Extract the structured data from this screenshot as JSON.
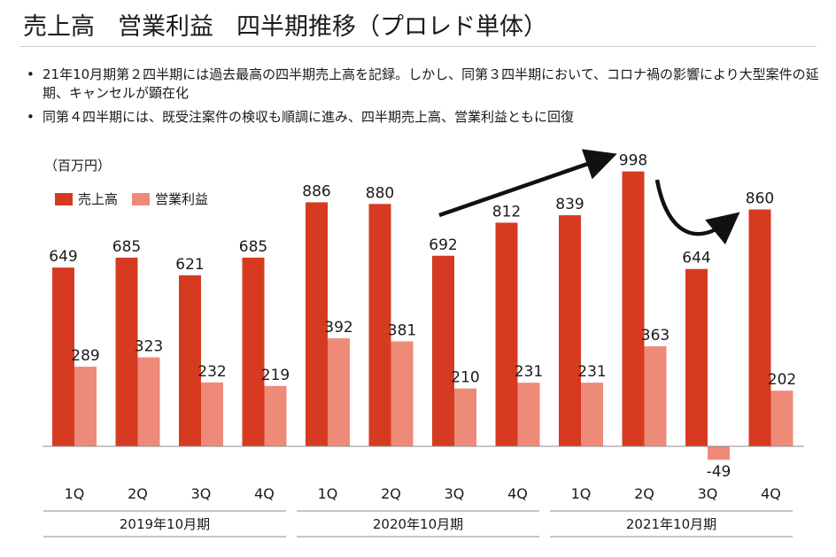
{
  "title": {
    "part1": "売上高",
    "part2": "営業利益",
    "part3": "四半期推移（プロレド単体）"
  },
  "bullets": [
    "21年10月期第２四半期には過去最高の四半期売上高を記録。しかし、同第３四半期において、コロナ禍の影響により大型案件の延期、キャンセルが顕在化",
    "同第４四半期には、既受注案件の検収も順調に進み、四半期売上高、営業利益ともに回復"
  ],
  "colors": {
    "sales": "#d63b21",
    "profit": "#ee8a78",
    "axis": "#8c8c8c"
  },
  "chart_data": {
    "type": "bar",
    "unit_label": "（百万円）",
    "categories": [
      "1Q",
      "2Q",
      "3Q",
      "4Q",
      "1Q",
      "2Q",
      "3Q",
      "4Q",
      "1Q",
      "2Q",
      "3Q",
      "4Q"
    ],
    "groups": [
      {
        "label": "2019年10月期",
        "quarters": 4
      },
      {
        "label": "2020年10月期",
        "quarters": 4
      },
      {
        "label": "2021年10月期",
        "quarters": 4
      }
    ],
    "series": [
      {
        "name": "売上高",
        "values": [
          649,
          685,
          621,
          685,
          886,
          880,
          692,
          812,
          839,
          998,
          644,
          860
        ]
      },
      {
        "name": "営業利益",
        "values": [
          289,
          323,
          232,
          219,
          392,
          381,
          210,
          231,
          231,
          363,
          -49,
          202
        ]
      }
    ],
    "ylim": [
      -80,
      1050
    ],
    "grid": false,
    "legend_position": "top-left"
  }
}
